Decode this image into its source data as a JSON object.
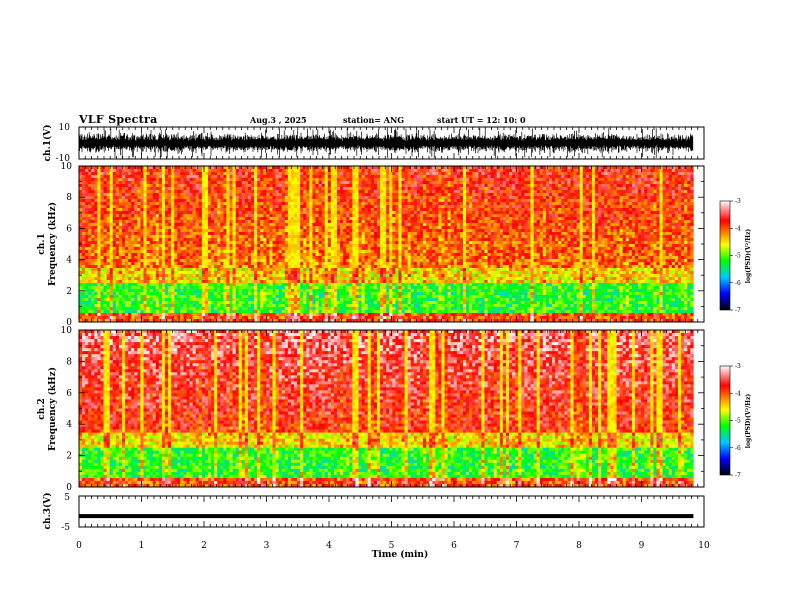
{
  "header": {
    "title": "VLF Spectra",
    "date": "Aug.3 , 2025",
    "station": "station= ANG",
    "start": "start UT = 12: 10: 0"
  },
  "colors": {
    "spectrum": [
      "#000000",
      "#0000ff",
      "#00c8ff",
      "#00ff00",
      "#ffff00",
      "#ff0000",
      "#ffffff"
    ]
  },
  "chart_data": [
    {
      "id": "ch1-waveform",
      "type": "line",
      "ylabel": "ch.1(V)",
      "ylim": [
        -10,
        10
      ],
      "yticks": [
        "10",
        "-10"
      ],
      "xlim": [
        0,
        10
      ]
    },
    {
      "id": "ch1-spectrogram",
      "type": "heatmap",
      "ylabel_line1": "ch.1",
      "ylabel_line2": "Frequency (kHz)",
      "ylim": [
        0,
        10
      ],
      "yticks": [
        "0",
        "2",
        "4",
        "6",
        "8",
        "10"
      ],
      "xlim": [
        0,
        10
      ],
      "colorbar": {
        "label": "log(PSD)(V²/Hz)",
        "range": [
          -7,
          -3
        ],
        "ticks": [
          "-3",
          "-4",
          "-5",
          "-6",
          "-7"
        ]
      }
    },
    {
      "id": "ch2-spectrogram",
      "type": "heatmap",
      "ylabel_line1": "ch.2",
      "ylabel_line2": "Frequency (kHz)",
      "ylim": [
        0,
        10
      ],
      "yticks": [
        "0",
        "2",
        "4",
        "6",
        "8",
        "10"
      ],
      "xlim": [
        0,
        10
      ],
      "colorbar": {
        "label": "log(PSD)(V²/Hz)",
        "range": [
          -7,
          -3
        ],
        "ticks": [
          "-3",
          "-4",
          "-5",
          "-6",
          "-7"
        ]
      }
    },
    {
      "id": "ch3-waveform",
      "type": "line",
      "ylabel": "ch.3(V)",
      "ylim": [
        -5,
        5
      ],
      "yticks": [
        "5",
        "-5"
      ],
      "xlim": [
        0,
        10
      ],
      "level": -1.5
    }
  ],
  "xaxis": {
    "label": "Time (min)",
    "ticks": [
      "0",
      "1",
      "2",
      "3",
      "4",
      "5",
      "6",
      "7",
      "8",
      "9",
      "10"
    ],
    "data_end": 9.83
  }
}
